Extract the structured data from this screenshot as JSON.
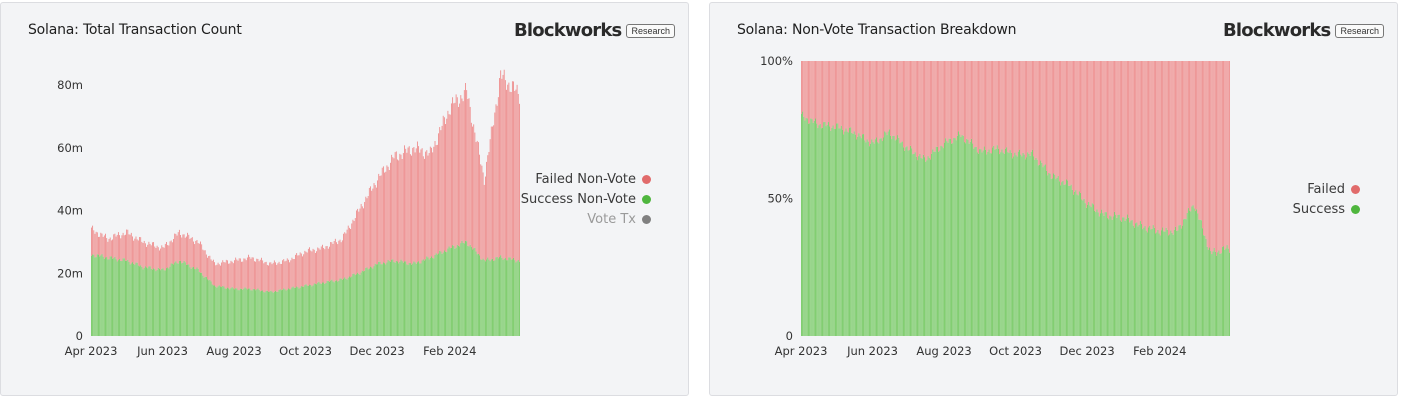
{
  "brand": {
    "name": "Blockworks",
    "tag": "Research"
  },
  "colors": {
    "failed": "#ee8a8a",
    "success": "#72c85e",
    "vote": "#808080",
    "failed_dot": "#e16b6b",
    "success_dot": "#4fb63e"
  },
  "chart_data": [
    {
      "type": "bar",
      "stacked": true,
      "title": "Solana: Total Transaction Count",
      "xlabel": "",
      "ylabel": "",
      "x_ticks": [
        "Apr 2023",
        "Jun 2023",
        "Aug 2023",
        "Oct 2023",
        "Dec 2023",
        "Feb 2024"
      ],
      "y_ticks": [
        "0",
        "20m",
        "40m",
        "60m",
        "80m"
      ],
      "ylim": [
        0,
        88
      ],
      "unit": "millions",
      "x_range": [
        "2023-04-01",
        "2024-03-31"
      ],
      "weekly_points": {
        "dates": [
          "2023-04-01",
          "2023-04-15",
          "2023-05-01",
          "2023-05-15",
          "2023-06-01",
          "2023-06-15",
          "2023-07-01",
          "2023-07-15",
          "2023-08-01",
          "2023-08-15",
          "2023-09-01",
          "2023-09-15",
          "2023-10-01",
          "2023-10-15",
          "2023-11-01",
          "2023-11-15",
          "2023-12-01",
          "2023-12-15",
          "2024-01-01",
          "2024-01-15",
          "2024-02-01",
          "2024-02-15",
          "2024-03-01",
          "2024-03-15",
          "2024-03-31"
        ],
        "total": [
          34,
          31,
          33,
          30,
          28,
          33,
          30,
          23,
          24,
          25,
          23,
          24,
          27,
          28,
          31,
          40,
          50,
          57,
          60,
          58,
          73,
          78,
          50,
          83,
          77
        ],
        "success": [
          26,
          25,
          24,
          22,
          21,
          24,
          21,
          16,
          15,
          15,
          14,
          15,
          16,
          17,
          18,
          20,
          23,
          24,
          23,
          25,
          28,
          30,
          24,
          25,
          24
        ]
      },
      "series": [
        {
          "name": "Failed Non-Vote"
        },
        {
          "name": "Success Non-Vote"
        },
        {
          "name": "Vote Tx"
        }
      ],
      "legend_position": "right"
    },
    {
      "type": "bar",
      "stacked": true,
      "percent": true,
      "title": "Solana: Non-Vote Transaction Breakdown",
      "xlabel": "",
      "ylabel": "",
      "x_ticks": [
        "Apr 2023",
        "Jun 2023",
        "Aug 2023",
        "Oct 2023",
        "Dec 2023",
        "Feb 2024"
      ],
      "y_ticks": [
        "0",
        "50%",
        "100%"
      ],
      "ylim": [
        0,
        100
      ],
      "x_range": [
        "2023-04-01",
        "2024-03-31"
      ],
      "weekly_points": {
        "dates": [
          "2023-04-01",
          "2023-04-15",
          "2023-05-01",
          "2023-05-15",
          "2023-06-01",
          "2023-06-15",
          "2023-07-01",
          "2023-07-15",
          "2023-08-01",
          "2023-08-15",
          "2023-09-01",
          "2023-09-15",
          "2023-10-01",
          "2023-10-15",
          "2023-11-01",
          "2023-11-15",
          "2023-12-01",
          "2023-12-15",
          "2024-01-01",
          "2024-01-15",
          "2024-02-01",
          "2024-02-15",
          "2024-03-01",
          "2024-03-15",
          "2024-03-31"
        ],
        "success_pct": [
          80,
          77,
          76,
          74,
          70,
          74,
          68,
          64,
          70,
          73,
          67,
          68,
          66,
          66,
          58,
          55,
          48,
          44,
          43,
          40,
          38,
          38,
          48,
          30,
          32
        ]
      },
      "series": [
        {
          "name": "Failed"
        },
        {
          "name": "Success"
        }
      ],
      "legend_position": "right"
    }
  ]
}
